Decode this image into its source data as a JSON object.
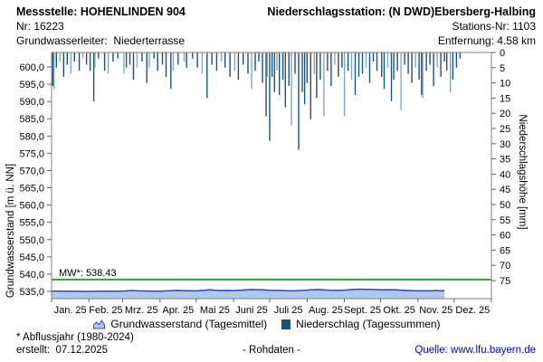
{
  "header": {
    "left": {
      "title": "Messstelle: HOHENLINDEN 904",
      "line2": "Nr: 16223",
      "line3": "Grundwasserleiter:  Niederterrasse"
    },
    "right": {
      "title": "Niederschlagsstation: (N DWD)Ebersberg-Halbing",
      "line2": "Stations-Nr: 1103",
      "line3": "Entfernung: 4.58 km"
    }
  },
  "chart_data": {
    "type": "mixed",
    "left_axis": {
      "label": "Grundwasserstand [m ü. NN]",
      "min": 535,
      "max": 600,
      "tick_step": 5,
      "tick_labels": [
        "600,0",
        "595,0",
        "590,0",
        "585,0",
        "580,0",
        "575,0",
        "570,0",
        "565,0",
        "560,0",
        "555,0",
        "550,0",
        "545,0",
        "540,0",
        "535,0"
      ]
    },
    "right_axis": {
      "label": "Niederschlagshöhe [mm]",
      "min": 0,
      "max": 75,
      "tick_step": 5,
      "inverted": true
    },
    "x_axis": {
      "tick_labels": [
        "Jan. 25",
        "Feb. 25",
        "Mrz. 25",
        "Apr. 25",
        "Mai 25",
        "Juni 25",
        "Juli 25",
        "Aug. 25",
        "Sept. 25",
        "Okt. 25",
        "Nov. 25",
        "Dez. 25"
      ],
      "month_days": [
        31,
        28,
        31,
        30,
        31,
        30,
        31,
        31,
        30,
        31,
        30,
        31
      ]
    },
    "mw_line": {
      "label": "MW*: 538.43",
      "value": 538.43,
      "color": "#089608"
    },
    "series": [
      {
        "name": "Grundwasserstand (Tagesmittel)",
        "type": "area",
        "axis": "left",
        "color_line": "#2846D2",
        "color_fill": "#AFC9E9",
        "points": [
          [
            0,
            535.1
          ],
          [
            10,
            535.05
          ],
          [
            20,
            535.05
          ],
          [
            30,
            535.0
          ],
          [
            40,
            535.05
          ],
          [
            50,
            535.05
          ],
          [
            60,
            535.1
          ],
          [
            66,
            535.25
          ],
          [
            72,
            535.15
          ],
          [
            80,
            535.1
          ],
          [
            90,
            535.05
          ],
          [
            98,
            535.2
          ],
          [
            105,
            535.3
          ],
          [
            112,
            535.2
          ],
          [
            120,
            535.15
          ],
          [
            127,
            535.35
          ],
          [
            131,
            535.5
          ],
          [
            136,
            535.35
          ],
          [
            140,
            535.25
          ],
          [
            146,
            535.3
          ],
          [
            151,
            535.25
          ],
          [
            156,
            535.35
          ],
          [
            161,
            535.45
          ],
          [
            166,
            535.55
          ],
          [
            171,
            535.5
          ],
          [
            176,
            535.45
          ],
          [
            181,
            535.35
          ],
          [
            186,
            535.3
          ],
          [
            191,
            535.25
          ],
          [
            196,
            535.2
          ],
          [
            201,
            535.15
          ],
          [
            206,
            535.25
          ],
          [
            211,
            535.35
          ],
          [
            216,
            535.5
          ],
          [
            221,
            535.55
          ],
          [
            226,
            535.45
          ],
          [
            231,
            535.35
          ],
          [
            236,
            535.3
          ],
          [
            241,
            535.35
          ],
          [
            246,
            535.45
          ],
          [
            251,
            535.6
          ],
          [
            256,
            535.65
          ],
          [
            261,
            535.6
          ],
          [
            266,
            535.55
          ],
          [
            271,
            535.5
          ],
          [
            276,
            535.45
          ],
          [
            281,
            535.5
          ],
          [
            286,
            535.45
          ],
          [
            291,
            535.35
          ],
          [
            296,
            535.25
          ],
          [
            301,
            535.2
          ],
          [
            306,
            535.15
          ],
          [
            311,
            535.2
          ],
          [
            316,
            535.15
          ],
          [
            319,
            535.25
          ],
          [
            322,
            535.2
          ],
          [
            324,
            535.15
          ],
          [
            326,
            535.3
          ]
        ]
      },
      {
        "name": "Niederschlag (Tagessummen)",
        "type": "bar",
        "axis": "right",
        "color": "#175380",
        "color_light": "#7EA6C8",
        "points": [
          [
            1,
            11,
            "d"
          ],
          [
            2,
            12,
            "l"
          ],
          [
            4,
            5,
            "d"
          ],
          [
            7,
            3,
            "l"
          ],
          [
            10,
            8,
            "d"
          ],
          [
            13,
            4,
            "d"
          ],
          [
            16,
            7,
            "l"
          ],
          [
            19,
            3,
            "d"
          ],
          [
            23,
            6,
            "d"
          ],
          [
            26,
            2,
            "l"
          ],
          [
            29,
            4,
            "d"
          ],
          [
            32,
            6,
            "d"
          ],
          [
            35,
            16,
            "d"
          ],
          [
            36,
            5,
            "l"
          ],
          [
            39,
            2,
            "d"
          ],
          [
            44,
            6,
            "d"
          ],
          [
            47,
            7,
            "l"
          ],
          [
            51,
            3,
            "d"
          ],
          [
            55,
            2,
            "d"
          ],
          [
            60,
            7,
            "l"
          ],
          [
            62,
            5,
            "d"
          ],
          [
            65,
            4,
            "d"
          ],
          [
            68,
            9,
            "d"
          ],
          [
            71,
            5,
            "l"
          ],
          [
            75,
            3,
            "d"
          ],
          [
            79,
            10,
            "d"
          ],
          [
            81,
            5,
            "l"
          ],
          [
            85,
            2,
            "d"
          ],
          [
            88,
            6,
            "d"
          ],
          [
            92,
            4,
            "d"
          ],
          [
            95,
            8,
            "d"
          ],
          [
            99,
            12,
            "d"
          ],
          [
            101,
            6,
            "l"
          ],
          [
            105,
            4,
            "d"
          ],
          [
            110,
            3,
            "l"
          ],
          [
            112,
            5,
            "d"
          ],
          [
            117,
            2,
            "d"
          ],
          [
            121,
            5,
            "d"
          ],
          [
            125,
            7,
            "l"
          ],
          [
            129,
            15,
            "d"
          ],
          [
            133,
            4,
            "d"
          ],
          [
            137,
            6,
            "d"
          ],
          [
            141,
            3,
            "l"
          ],
          [
            144,
            5,
            "d"
          ],
          [
            148,
            8,
            "d"
          ],
          [
            152,
            6,
            "l"
          ],
          [
            155,
            9,
            "d"
          ],
          [
            159,
            4,
            "d"
          ],
          [
            163,
            7,
            "d"
          ],
          [
            166,
            12,
            "l"
          ],
          [
            169,
            6,
            "d"
          ],
          [
            172,
            3,
            "d"
          ],
          [
            175,
            10,
            "d"
          ],
          [
            178,
            21,
            "d"
          ],
          [
            179,
            8,
            "l"
          ],
          [
            181,
            29,
            "d"
          ],
          [
            183,
            8,
            "d"
          ],
          [
            185,
            13,
            "d"
          ],
          [
            187,
            6,
            "l"
          ],
          [
            189,
            14,
            "d"
          ],
          [
            192,
            9,
            "d"
          ],
          [
            194,
            18,
            "d"
          ],
          [
            197,
            11,
            "d"
          ],
          [
            199,
            24,
            "l"
          ],
          [
            202,
            7,
            "d"
          ],
          [
            205,
            32,
            "d"
          ],
          [
            208,
            13,
            "d"
          ],
          [
            210,
            17,
            "d"
          ],
          [
            212,
            10,
            "d"
          ],
          [
            215,
            22,
            "d"
          ],
          [
            218,
            7,
            "l"
          ],
          [
            220,
            15,
            "d"
          ],
          [
            223,
            9,
            "d"
          ],
          [
            226,
            21,
            "l"
          ],
          [
            229,
            6,
            "d"
          ],
          [
            232,
            11,
            "d"
          ],
          [
            235,
            4,
            "l"
          ],
          [
            238,
            8,
            "d"
          ],
          [
            241,
            5,
            "d"
          ],
          [
            243,
            21,
            "l"
          ],
          [
            246,
            6,
            "d"
          ],
          [
            249,
            9,
            "l"
          ],
          [
            252,
            14,
            "d"
          ],
          [
            255,
            8,
            "d"
          ],
          [
            258,
            7,
            "d"
          ],
          [
            261,
            5,
            "l"
          ],
          [
            264,
            10,
            "d"
          ],
          [
            267,
            3,
            "d"
          ],
          [
            270,
            6,
            "d"
          ],
          [
            274,
            8,
            "d"
          ],
          [
            276,
            12,
            "d"
          ],
          [
            279,
            5,
            "l"
          ],
          [
            282,
            16,
            "d"
          ],
          [
            284,
            9,
            "d"
          ],
          [
            287,
            6,
            "d"
          ],
          [
            290,
            19,
            "l"
          ],
          [
            293,
            4,
            "d"
          ],
          [
            296,
            7,
            "d"
          ],
          [
            299,
            10,
            "d"
          ],
          [
            302,
            5,
            "l"
          ],
          [
            305,
            9,
            "d"
          ],
          [
            307,
            14,
            "d"
          ],
          [
            308,
            15,
            "l"
          ],
          [
            311,
            6,
            "d"
          ],
          [
            314,
            4,
            "d"
          ],
          [
            317,
            11,
            "d"
          ],
          [
            320,
            5,
            "l"
          ],
          [
            323,
            8,
            "d"
          ],
          [
            326,
            3,
            "d"
          ],
          [
            328,
            6,
            "d"
          ],
          [
            331,
            13,
            "l"
          ],
          [
            333,
            9,
            "d"
          ],
          [
            336,
            5,
            "d"
          ],
          [
            339,
            2,
            "d"
          ]
        ]
      }
    ]
  },
  "legend": {
    "items": [
      {
        "label": "Grundwasserstand (Tagesmittel)"
      },
      {
        "label": "Niederschlag (Tagessummen)"
      }
    ]
  },
  "footer": {
    "note": "* Abflussjahr (1980-2024)",
    "created": "erstellt:  07.12.2025",
    "center": "- Rohdaten -",
    "source": "Quelle: www.lfu.bayern.de"
  }
}
